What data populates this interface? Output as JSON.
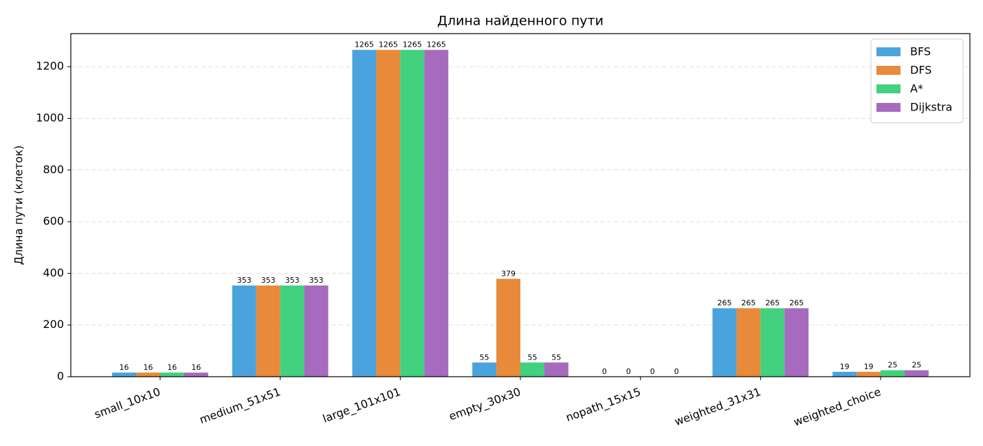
{
  "chart_data": {
    "type": "bar",
    "title": "Длина найденного пути",
    "y_label": "Длина пути (клеток)",
    "categories": [
      "small_10x10",
      "medium_51x51",
      "large_101x101",
      "empty_30x30",
      "nopath_15x15",
      "weighted_31x31",
      "weighted_choice"
    ],
    "series": [
      {
        "name": "BFS",
        "color": "#4ba3de",
        "values": [
          16,
          353,
          1265,
          55,
          0,
          265,
          19
        ]
      },
      {
        "name": "DFS",
        "color": "#e88a39",
        "values": [
          16,
          353,
          1265,
          379,
          0,
          265,
          19
        ]
      },
      {
        "name": "A*",
        "color": "#41d17f",
        "values": [
          16,
          353,
          1265,
          55,
          0,
          265,
          25
        ]
      },
      {
        "name": "Dijkstra",
        "color": "#a66bbf",
        "values": [
          16,
          353,
          1265,
          55,
          0,
          265,
          25
        ]
      }
    ],
    "ylim": [
      0,
      1328
    ],
    "yticks": [
      0,
      200,
      400,
      600,
      800,
      1000,
      1200
    ],
    "grid": true,
    "legend": "upper-right"
  }
}
